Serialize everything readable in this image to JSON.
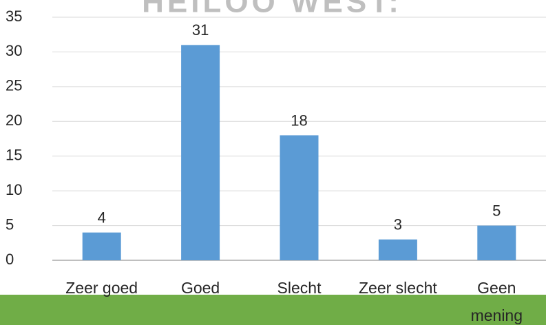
{
  "chart_data": {
    "type": "bar",
    "title": "HEILOO WEST:",
    "categories": [
      "Zeer goed",
      "Goed",
      "Slecht",
      "Zeer slecht",
      "Geen mening"
    ],
    "values": [
      4,
      31,
      18,
      3,
      5
    ],
    "color": "#5b9bd5",
    "ylim": [
      0,
      35
    ],
    "yticks": [
      0,
      5,
      10,
      15,
      20,
      25,
      30,
      35
    ],
    "grid": true
  }
}
